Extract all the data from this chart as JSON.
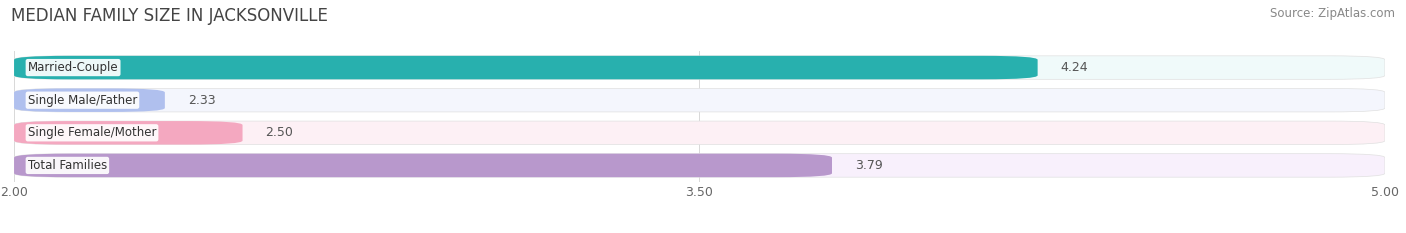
{
  "title": "MEDIAN FAMILY SIZE IN JACKSONVILLE",
  "source": "Source: ZipAtlas.com",
  "categories": [
    "Married-Couple",
    "Single Male/Father",
    "Single Female/Mother",
    "Total Families"
  ],
  "values": [
    4.24,
    2.33,
    2.5,
    3.79
  ],
  "bar_colors": [
    "#28b0ae",
    "#b0c0ee",
    "#f4a8c0",
    "#b898cc"
  ],
  "bar_bg_colors": [
    "#f0fafa",
    "#f4f6fd",
    "#fdf0f5",
    "#f8f0fc"
  ],
  "xmin": 2.0,
  "xmax": 5.0,
  "xticks": [
    2.0,
    3.5,
    5.0
  ],
  "tick_labels": [
    "2.00",
    "3.50",
    "5.00"
  ],
  "page_bg_color": "#ffffff",
  "bar_region_bg": "#f0f0f0",
  "title_fontsize": 12,
  "source_fontsize": 8.5,
  "label_fontsize": 8.5,
  "value_fontsize": 9
}
